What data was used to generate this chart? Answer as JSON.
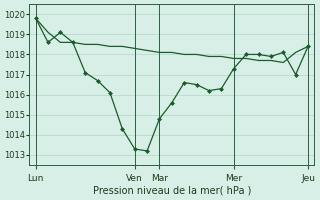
{
  "background_color": "#d8efe8",
  "grid_color": "#b0d8c8",
  "line_color": "#1a5c2a",
  "marker_color": "#1a5c2a",
  "xlabel": "Pression niveau de la mer( hPa )",
  "ylim": [
    1012.5,
    1020.5
  ],
  "yticks": [
    1013,
    1014,
    1015,
    1016,
    1017,
    1018,
    1019,
    1020
  ],
  "day_labels": [
    "Lun",
    "Ven",
    "Mar",
    "Mer",
    "Jeu"
  ],
  "day_positions": [
    0,
    16,
    20,
    32,
    44
  ],
  "series1_x": [
    0,
    2,
    4,
    6,
    8,
    10,
    12,
    14,
    16,
    18,
    20,
    22,
    24,
    26,
    28,
    30,
    32,
    34,
    36,
    38,
    40,
    42,
    44
  ],
  "series1_y": [
    1019.8,
    1018.6,
    1019.1,
    1018.6,
    1017.1,
    1016.7,
    1016.1,
    1014.3,
    1013.3,
    1013.2,
    1014.8,
    1015.6,
    1016.6,
    1016.5,
    1016.2,
    1016.3,
    1017.3,
    1018.0,
    1018.0,
    1017.9,
    1018.1,
    1017.0,
    1018.4
  ],
  "series2_x": [
    0,
    2,
    4,
    6,
    8,
    10,
    12,
    14,
    16,
    18,
    20,
    22,
    24,
    26,
    28,
    30,
    32,
    34,
    36,
    38,
    40,
    42,
    44
  ],
  "series2_y": [
    1019.8,
    1019.1,
    1018.6,
    1018.6,
    1018.5,
    1018.5,
    1018.4,
    1018.4,
    1018.3,
    1018.2,
    1018.1,
    1018.1,
    1018.0,
    1018.0,
    1017.9,
    1017.9,
    1017.8,
    1017.8,
    1017.7,
    1017.7,
    1017.6,
    1018.1,
    1018.4
  ],
  "total_steps": 44
}
